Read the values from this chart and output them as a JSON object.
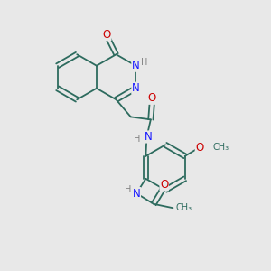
{
  "bg_color": "#e8e8e8",
  "bond_color": "#2d6b5e",
  "atom_colors": {
    "N": "#1a1aff",
    "O": "#cc0000",
    "H": "#808080",
    "C": "#2d6b5e"
  },
  "font_size_atom": 8.5,
  "font_size_H": 7.0,
  "font_size_methyl": 7.0
}
